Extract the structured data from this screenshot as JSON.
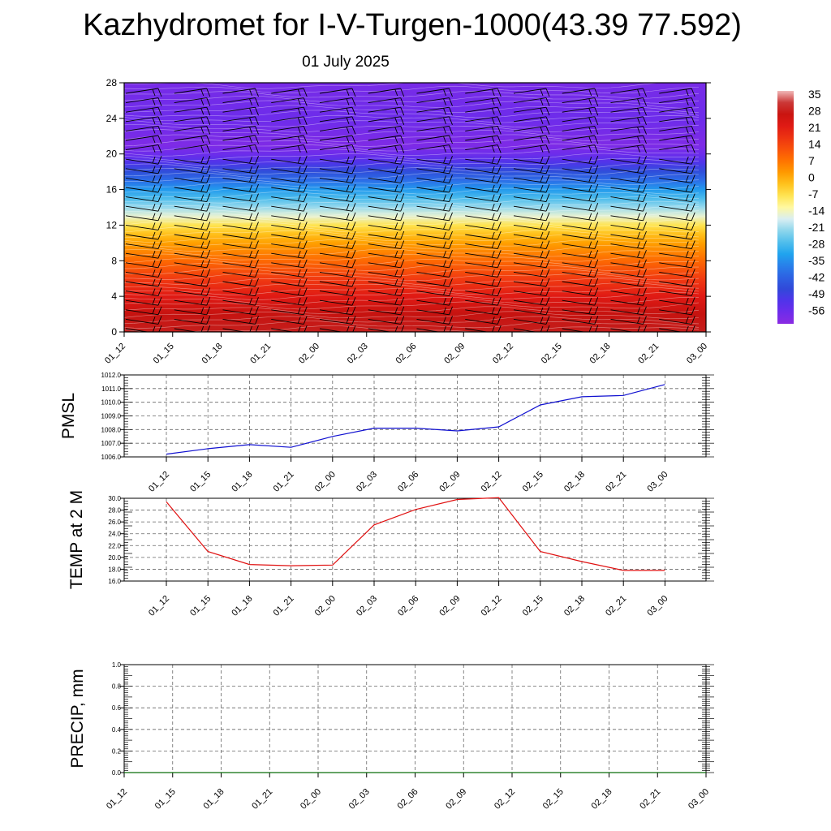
{
  "title": "Kazhydromet for I-V-Turgen-1000(43.39 77.592)",
  "subtitle": "01 July 2025",
  "colors": {
    "pmsl_line": "#1010d0",
    "temp_line": "#e01010",
    "precip_line": "#0a6e0a",
    "grid": "#555555",
    "barb": "#000000"
  },
  "chart_data": [
    {
      "type": "heatmap",
      "name": "upper-air temperature cross-section with wind barbs",
      "x_ticks": [
        "01_12",
        "01_15",
        "01_18",
        "01_21",
        "02_00",
        "02_03",
        "02_06",
        "02_09",
        "02_12",
        "02_15",
        "02_18",
        "02_21",
        "03_00"
      ],
      "y_ticks": [
        0,
        4,
        8,
        12,
        16,
        20,
        24,
        28
      ],
      "ylim": [
        0,
        28
      ],
      "colorbar_labels": [
        "35",
        "28",
        "21",
        "14",
        "7",
        "0",
        "-7",
        "-14",
        "-21",
        "-28",
        "-35",
        "-42",
        "-49",
        "-56"
      ],
      "colorbar_range": [
        -60,
        38
      ],
      "profile": {
        "height": [
          0,
          2,
          4,
          6,
          8,
          10,
          11,
          12,
          13,
          14,
          15,
          16,
          17,
          18,
          19,
          20,
          21,
          22,
          24,
          26,
          28
        ],
        "temp": [
          31,
          29,
          23,
          17,
          10,
          3,
          -1,
          -6,
          -14,
          -20,
          -26,
          -32,
          -38,
          -44,
          -50,
          -55,
          -58,
          -57,
          -55,
          -56,
          -57
        ]
      },
      "grid": false
    },
    {
      "type": "line",
      "ylabel": "PMSL",
      "categories": [
        "01_12",
        "01_15",
        "01_18",
        "01_21",
        "02_00",
        "02_03",
        "02_06",
        "02_09",
        "02_12",
        "02_15",
        "02_18",
        "02_21",
        "03_00"
      ],
      "values": [
        1006.2,
        1006.6,
        1006.9,
        1006.7,
        1007.5,
        1008.1,
        1008.1,
        1007.9,
        1008.2,
        1009.8,
        1010.4,
        1010.5,
        1011.3
      ],
      "y_ticks": [
        "1006.0",
        "1007.0",
        "1008.0",
        "1009.0",
        "1010.0",
        "1011.0",
        "1012.0"
      ],
      "ylim": [
        1006,
        1012
      ],
      "grid": true
    },
    {
      "type": "line",
      "ylabel": "TEMP at 2 M",
      "categories": [
        "01_12",
        "01_15",
        "01_18",
        "01_21",
        "02_00",
        "02_03",
        "02_06",
        "02_09",
        "02_12",
        "02_15",
        "02_18",
        "02_21",
        "03_00"
      ],
      "values": [
        29.4,
        21.0,
        18.8,
        18.6,
        18.7,
        25.5,
        28.1,
        29.8,
        30.1,
        21.0,
        19.3,
        17.8,
        17.8
      ],
      "y_ticks": [
        "16.0",
        "18.0",
        "20.0",
        "22.0",
        "24.0",
        "26.0",
        "28.0",
        "30.0"
      ],
      "ylim": [
        16,
        30
      ],
      "grid": true
    },
    {
      "type": "line",
      "ylabel": "PRECIP, mm",
      "categories": [
        "01_12",
        "01_15",
        "01_18",
        "01_21",
        "02_00",
        "02_03",
        "02_06",
        "02_09",
        "02_12",
        "02_15",
        "02_18",
        "02_21",
        "03_00"
      ],
      "values": [
        0,
        0,
        0,
        0,
        0,
        0,
        0,
        0,
        0,
        0,
        0,
        0,
        0
      ],
      "y_ticks": [
        "0.0",
        "0.2",
        "0.4",
        "0.6",
        "0.8",
        "1.0"
      ],
      "ylim": [
        0,
        1
      ],
      "grid": true
    }
  ]
}
